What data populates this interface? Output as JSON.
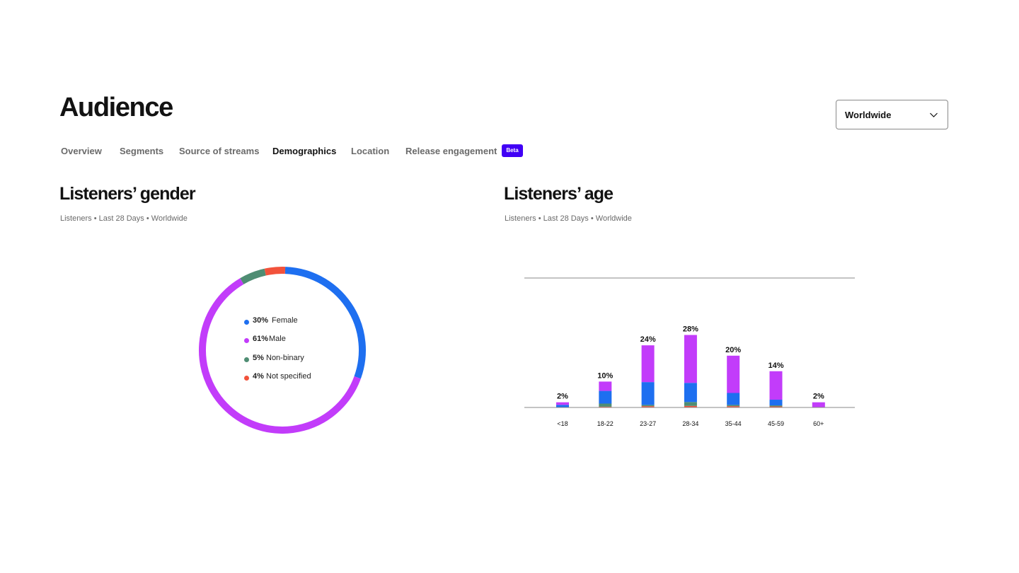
{
  "header": {
    "title": "Audience"
  },
  "region_select": {
    "value": "Worldwide"
  },
  "tabs": [
    {
      "label": "Overview",
      "active": false
    },
    {
      "label": "Segments",
      "active": false
    },
    {
      "label": "Source of streams",
      "active": false
    },
    {
      "label": "Demographics",
      "active": true
    },
    {
      "label": "Location",
      "active": false
    },
    {
      "label": "Release engagement",
      "active": false,
      "badge": "Beta"
    }
  ],
  "gender_section": {
    "title": "Listeners’ gender",
    "subtitle": "Listeners • Last 28 Days • Worldwide",
    "legend": [
      {
        "pct": "30%",
        "label": "Female",
        "value": 30,
        "color": "#1e6ff0"
      },
      {
        "pct": "61%",
        "label": "Male",
        "value": 61,
        "color": "#c23cfa"
      },
      {
        "pct": "5%",
        "label": "Non-binary",
        "value": 5,
        "color": "#4f8d73"
      },
      {
        "pct": "4%",
        "label": "Not specified",
        "value": 4,
        "color": "#f2523b"
      }
    ]
  },
  "age_section": {
    "title": "Listeners’ age",
    "subtitle": "Listeners • Last 28 Days • Worldwide"
  },
  "chart_data": [
    {
      "type": "pie",
      "title": "Listeners’ gender",
      "categories": [
        "Female",
        "Male",
        "Non-binary",
        "Not specified"
      ],
      "values": [
        30,
        61,
        5,
        4
      ],
      "colors": [
        "#1e6ff0",
        "#c23cfa",
        "#4f8d73",
        "#f2523b"
      ],
      "start_category": "Female",
      "direction": "clockwise",
      "donut": true
    },
    {
      "type": "bar",
      "stacked": true,
      "title": "Listeners’ age",
      "categories": [
        "<18",
        "18-22",
        "23-27",
        "28-34",
        "35-44",
        "45-59",
        "60+"
      ],
      "totals": [
        2,
        10,
        24,
        28,
        20,
        14,
        2
      ],
      "total_labels": [
        "2%",
        "10%",
        "24%",
        "28%",
        "20%",
        "14%",
        "2%"
      ],
      "series": [
        {
          "name": "Not specified",
          "color": "#f2523b",
          "values": [
            0,
            0.3,
            0.5,
            0.6,
            0.5,
            0.4,
            0
          ]
        },
        {
          "name": "Non-binary",
          "color": "#4f8d73",
          "values": [
            0,
            1.2,
            0.5,
            1.5,
            0.5,
            0.4,
            0
          ]
        },
        {
          "name": "Female",
          "color": "#1e6ff0",
          "values": [
            1,
            4.9,
            8.8,
            7.4,
            4.6,
            2.2,
            0
          ]
        },
        {
          "name": "Male",
          "color": "#c23cfa",
          "values": [
            1,
            3.6,
            14.2,
            18.5,
            14.4,
            11,
            2
          ]
        }
      ],
      "ylim": [
        0,
        50
      ],
      "grid": true
    }
  ]
}
